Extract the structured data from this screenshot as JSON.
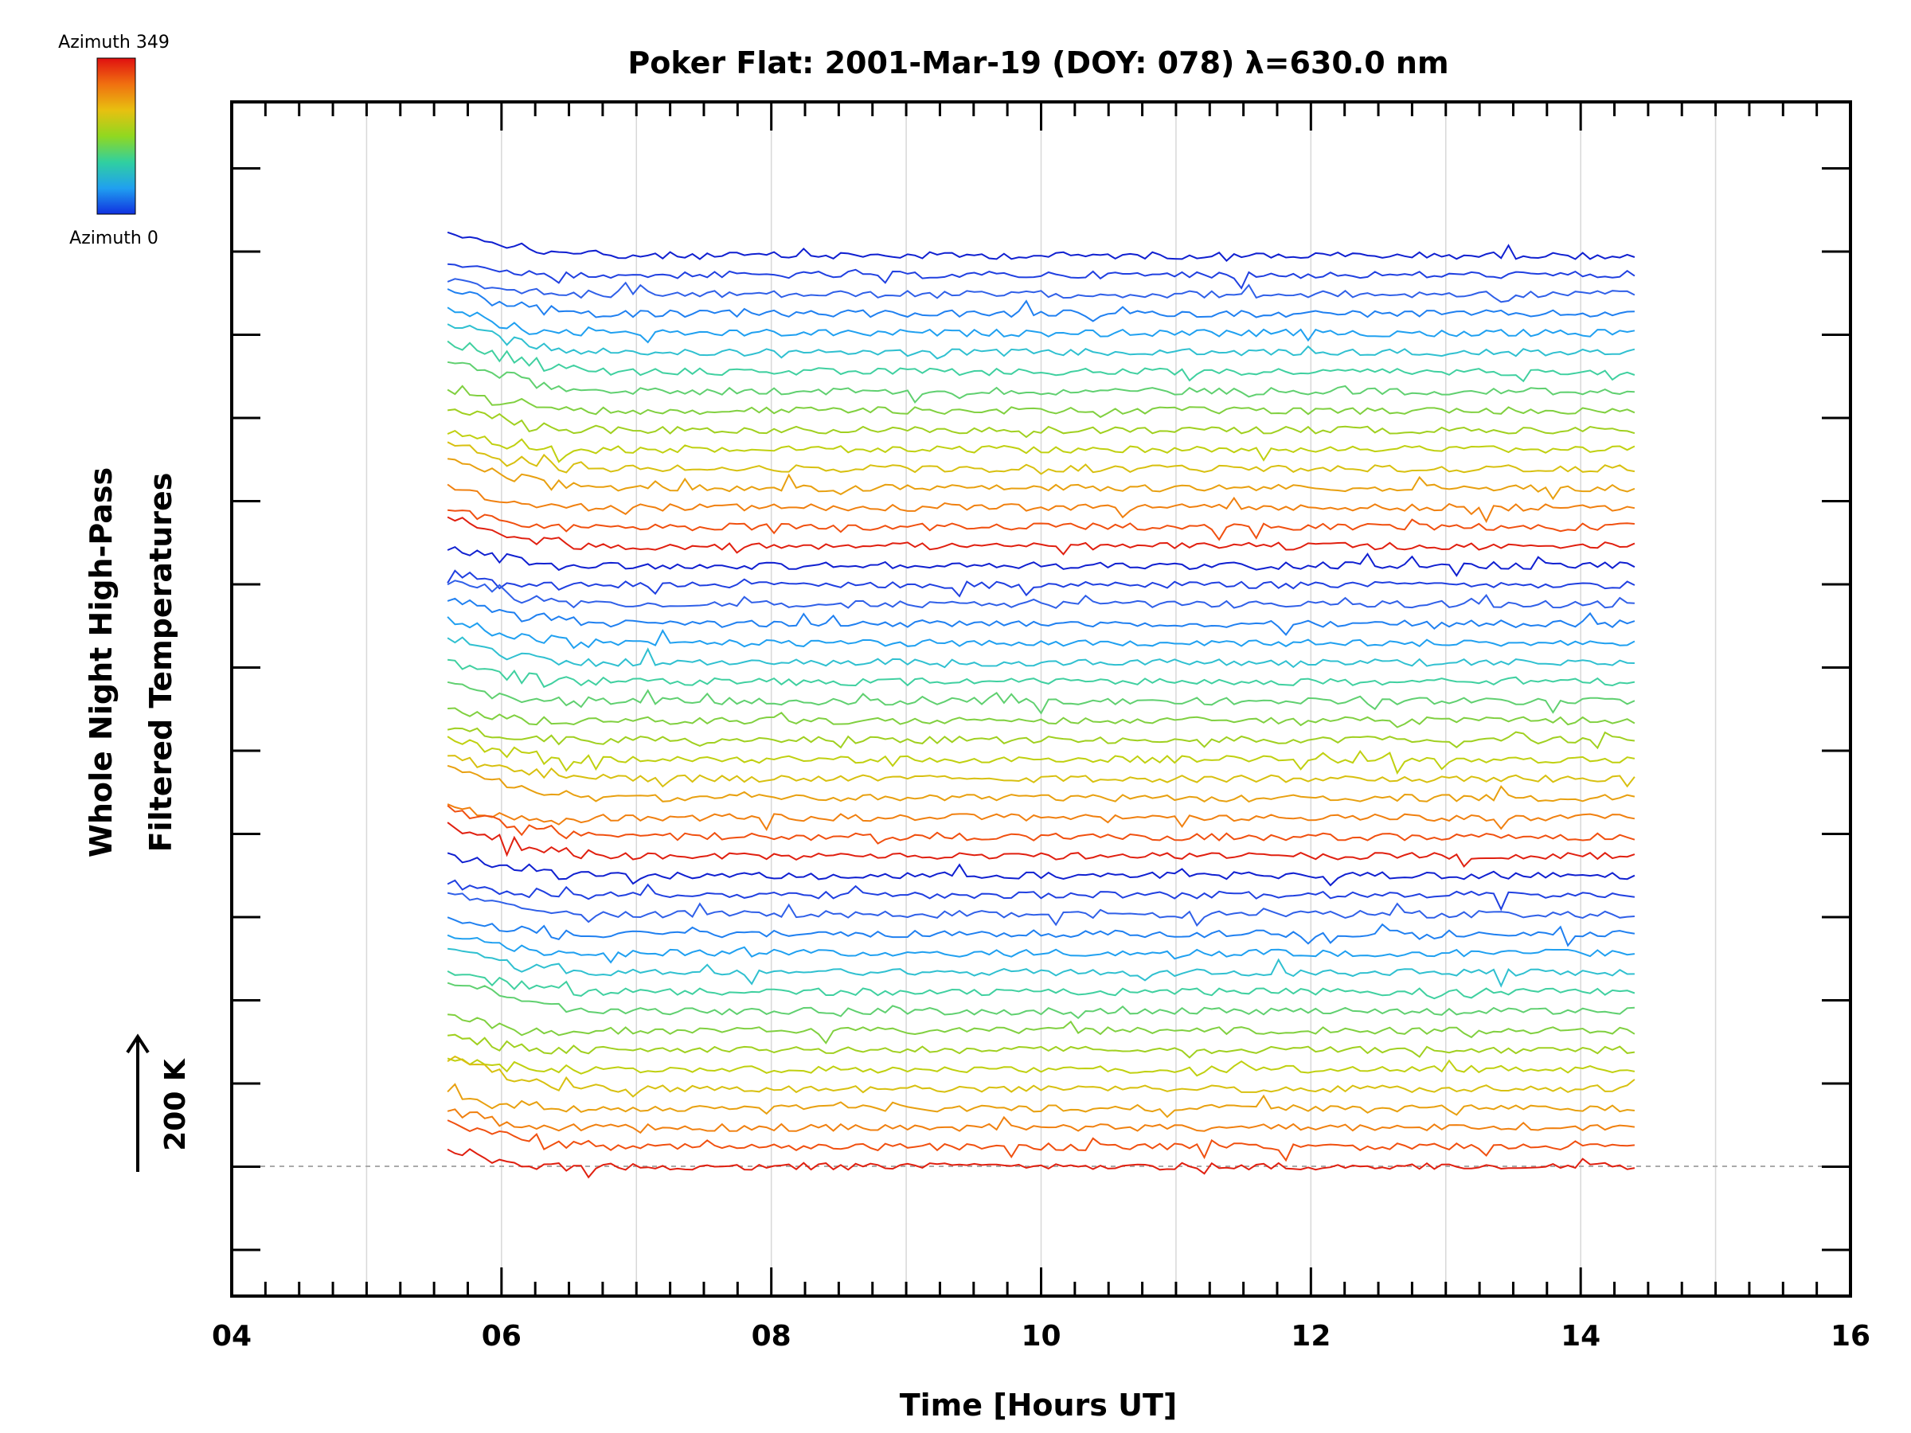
{
  "chart_data": {
    "type": "line",
    "title": "Poker Flat: 2001-Mar-19 (DOY: 078) λ=630.0 nm",
    "xlabel": "Time [Hours UT]",
    "ylabel_line1": "Whole Night High-Pass",
    "ylabel_line2": "Filtered Temperatures",
    "xlim": [
      4,
      16
    ],
    "x_ticks": [
      4,
      6,
      8,
      10,
      12,
      14,
      16
    ],
    "x_tick_labels": [
      "04",
      "06",
      "08",
      "10",
      "12",
      "14",
      "16"
    ],
    "x_start": 5.6,
    "x_end": 14.4,
    "n_traces": 48,
    "trace_offset_K": 25,
    "scale_bar_value": "200 K",
    "grid": true,
    "colorbar": {
      "label_top": "Azimuth 349",
      "label_bottom": "Azimuth 0",
      "colors": [
        "#1030e0",
        "#20a0f0",
        "#30d0a0",
        "#90d820",
        "#e8c010",
        "#f07010",
        "#e01010"
      ]
    },
    "azimuth_cycle_colors": [
      "#1020d0",
      "#2040e0",
      "#3060e8",
      "#2080f0",
      "#20a0f0",
      "#30c0d0",
      "#40d0a0",
      "#60d070",
      "#80d040",
      "#a0d020",
      "#c0d010",
      "#d8c010",
      "#e8a010",
      "#f08010",
      "#f05010",
      "#e02010"
    ]
  }
}
